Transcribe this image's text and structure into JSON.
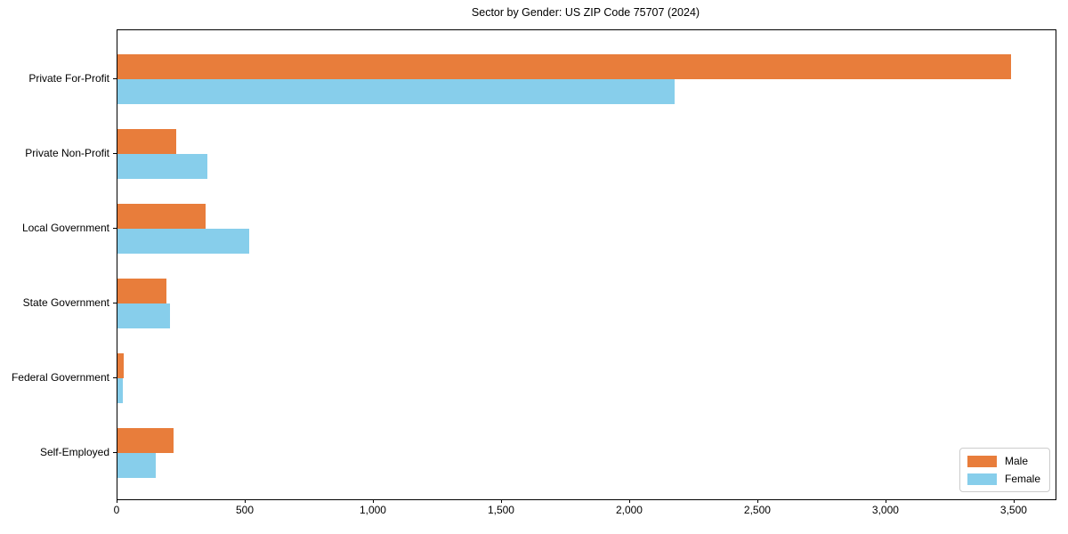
{
  "chart_data": {
    "type": "bar",
    "orientation": "horizontal",
    "title": "Sector by Gender: US ZIP Code 75707 (2024)",
    "categories": [
      "Private For-Profit",
      "Private Non-Profit",
      "Local Government",
      "State Government",
      "Federal Government",
      "Self-Employed"
    ],
    "series": [
      {
        "name": "Male",
        "color": "#e87d3b",
        "values": [
          3485,
          230,
          345,
          190,
          25,
          220
        ]
      },
      {
        "name": "Female",
        "color": "#87ceeb",
        "values": [
          2175,
          350,
          515,
          205,
          20,
          150
        ]
      }
    ],
    "xlabel": "",
    "ylabel": "",
    "xlim": [
      0,
      3660
    ],
    "xticks": [
      0,
      500,
      1000,
      1500,
      2000,
      2500,
      3000,
      3500
    ],
    "xtick_labels": [
      "0",
      "500",
      "1,000",
      "1,500",
      "2,000",
      "2,500",
      "3,000",
      "3,500"
    ],
    "legend_position": "lower right",
    "grid": false,
    "background_color": "#ffffff",
    "axis_color": "#000000"
  }
}
